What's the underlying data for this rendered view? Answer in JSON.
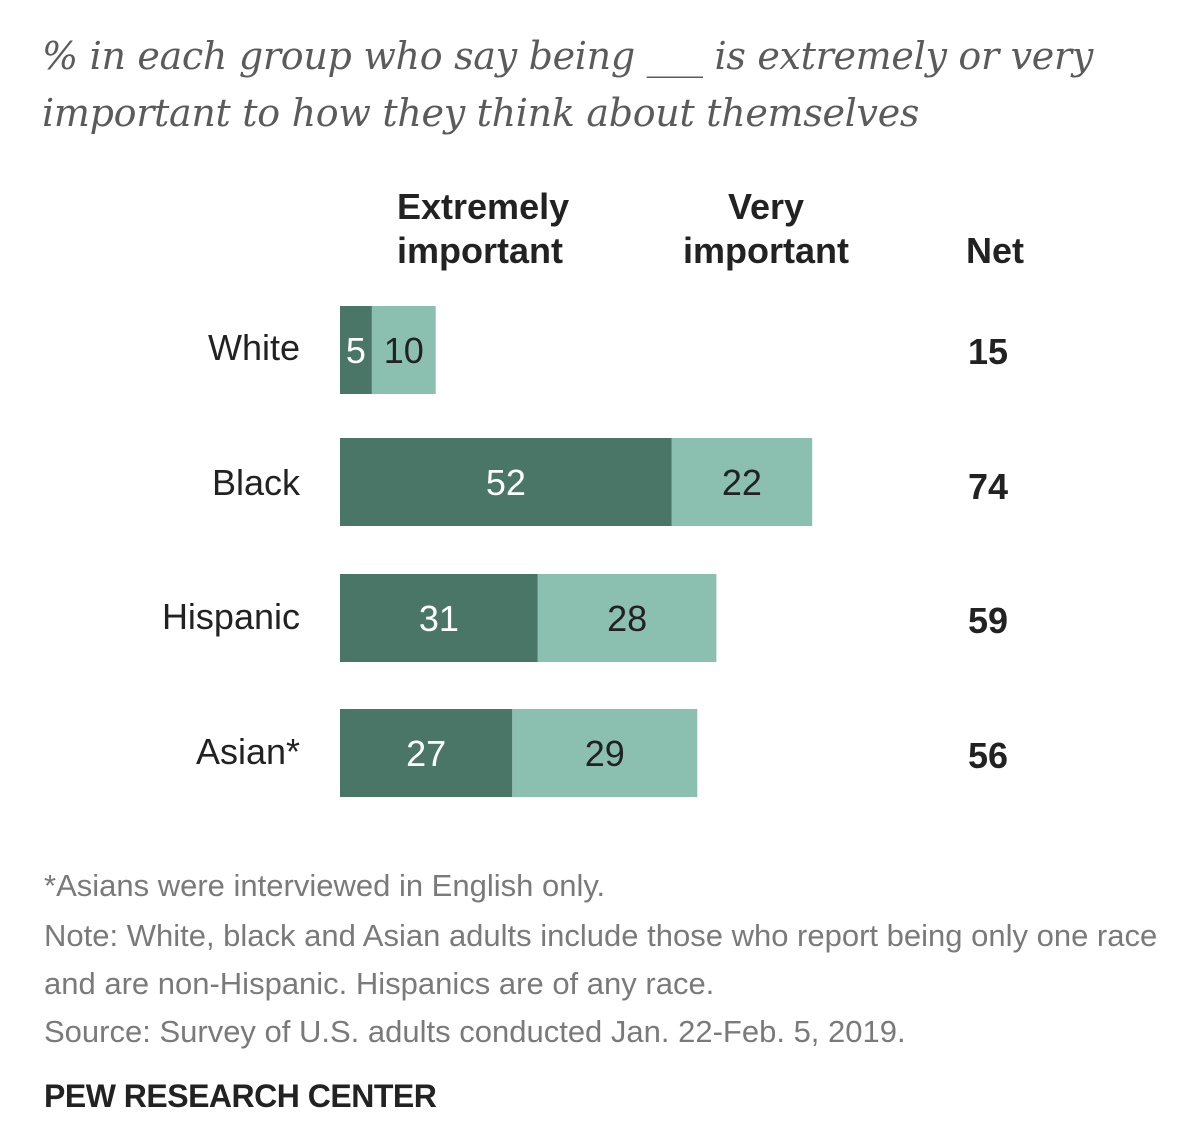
{
  "chart_data": {
    "type": "bar",
    "orientation": "horizontal",
    "stacked": true,
    "subtitle": "% in each group who say being ___ is extremely or very important to how they think about themselves",
    "categories": [
      "White",
      "Black",
      "Hispanic",
      "Asian*"
    ],
    "series": [
      {
        "name": "Extremely important",
        "values": [
          5,
          52,
          31,
          27
        ],
        "color": "#4a7668"
      },
      {
        "name": "Very important",
        "values": [
          10,
          22,
          28,
          29
        ],
        "color": "#8bbfaf"
      }
    ],
    "net_header": "Net",
    "net": [
      "15",
      "74",
      "59",
      "56"
    ],
    "xlim": [
      0,
      100
    ],
    "grid": false
  },
  "headers": {
    "extremely_line1": "Extremely",
    "extremely_line2": "important",
    "very_line1": "Very",
    "very_line2": "important"
  },
  "notes": {
    "asterisk": "*Asians were interviewed in English only.",
    "note": "Note: White, black and Asian adults include those who report being only one race and are non-Hispanic. Hispanics are of any race.",
    "source": "Source: Survey of U.S. adults conducted Jan. 22-Feb. 5, 2019.",
    "org": "PEW RESEARCH CENTER"
  }
}
